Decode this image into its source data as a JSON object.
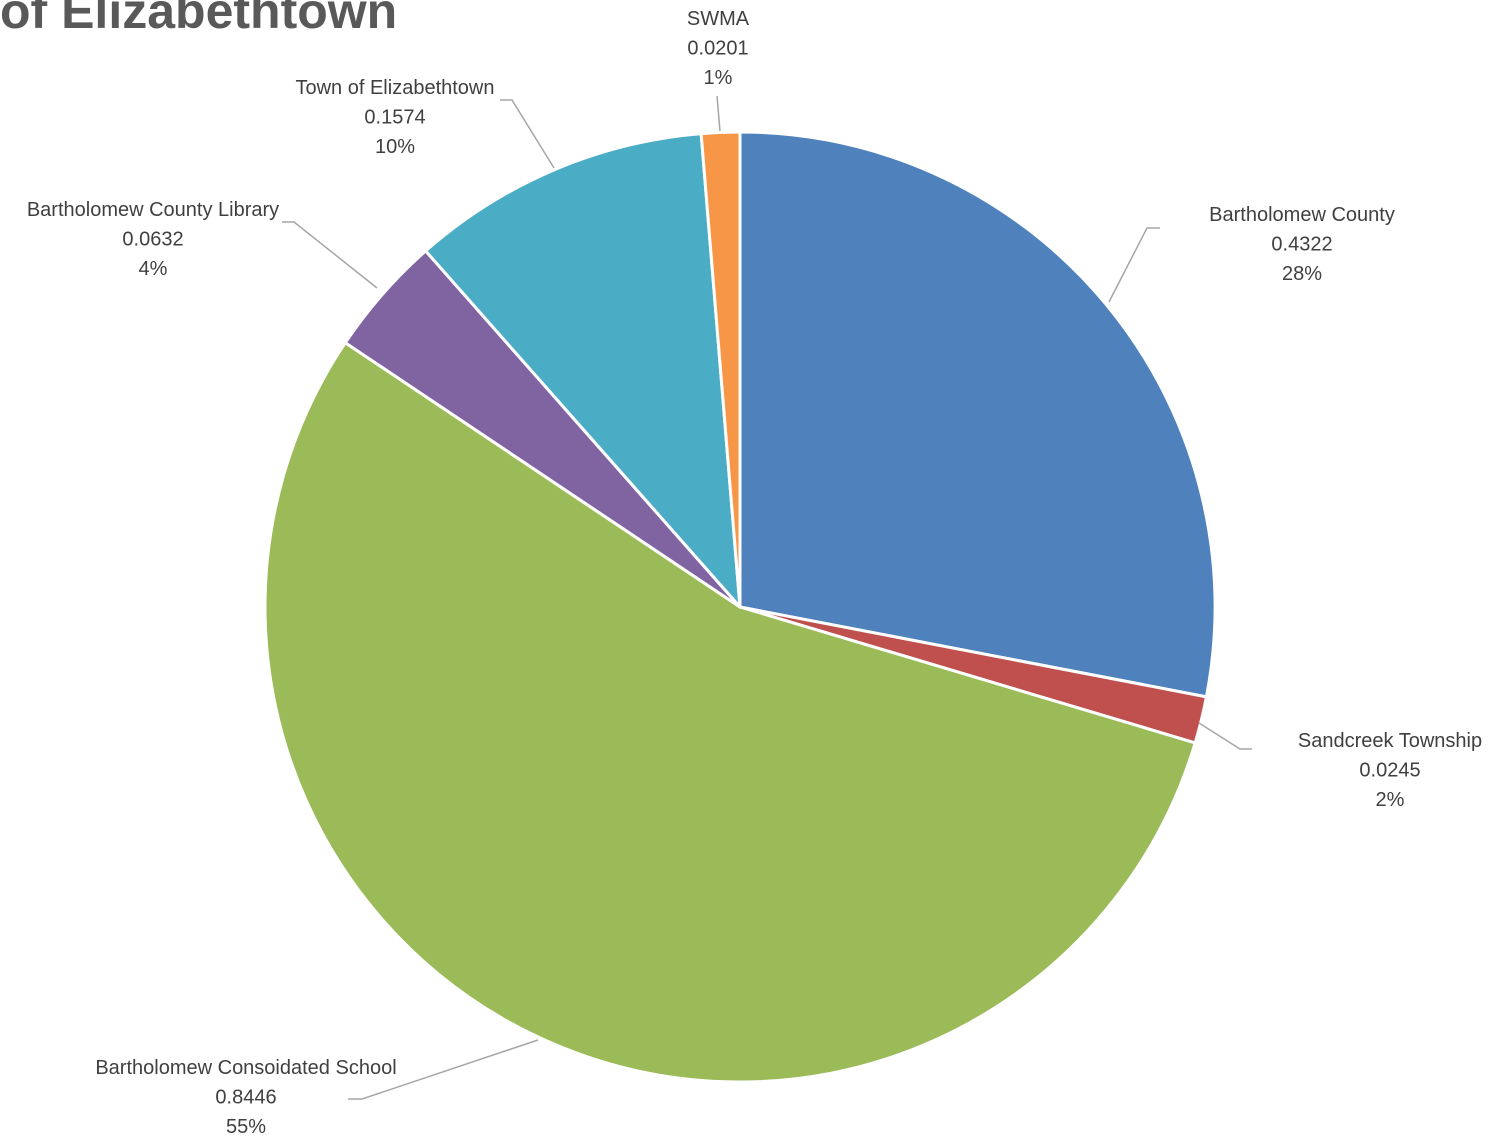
{
  "chart_data": {
    "type": "pie",
    "title": "of Elizabethtown",
    "slices": [
      {
        "label": "Bartholomew County",
        "value": 0.4322,
        "percent": "28%",
        "color": "#4F81BD"
      },
      {
        "label": "Sandcreek Township",
        "value": 0.0245,
        "percent": "2%",
        "color": "#C0504D"
      },
      {
        "label": "Bartholomew Consoidated School",
        "value": 0.8446,
        "percent": "55%",
        "color": "#9BBB59"
      },
      {
        "label": "Bartholomew County Library",
        "value": 0.0632,
        "percent": "4%",
        "color": "#8064A2"
      },
      {
        "label": "Town of Elizabethtown",
        "value": 0.1574,
        "percent": "10%",
        "color": "#4BACC6"
      },
      {
        "label": "SWMA",
        "value": 0.0201,
        "percent": "1%",
        "color": "#F79646"
      }
    ],
    "start": "12 o'clock",
    "direction": "clockwise",
    "legend": "none",
    "data_labels": "category name, value, percentage"
  }
}
